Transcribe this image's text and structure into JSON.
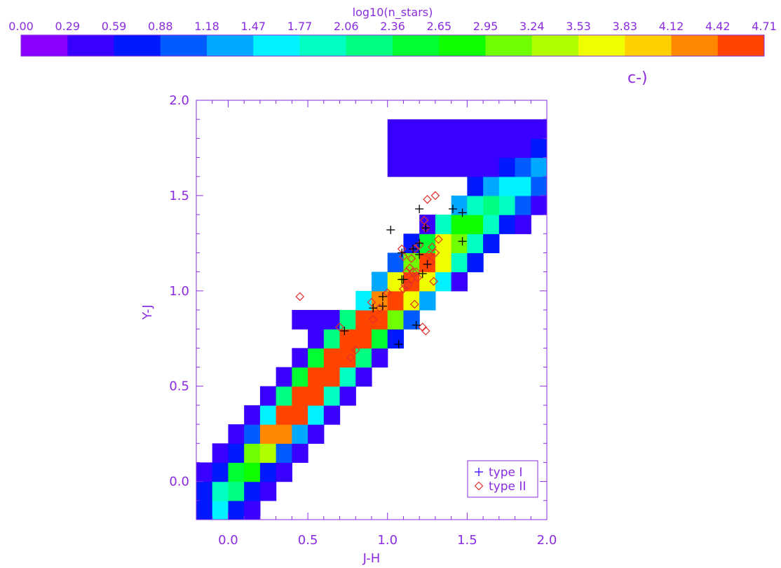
{
  "chart_data": {
    "type": "heatmap",
    "colorbar": {
      "title": "log10(n_stars)",
      "tick_labels": [
        "0.00",
        "0.29",
        "0.59",
        "0.88",
        "1.18",
        "1.47",
        "1.77",
        "2.06",
        "2.36",
        "2.65",
        "2.95",
        "3.24",
        "3.53",
        "3.83",
        "4.12",
        "4.42",
        "4.71"
      ],
      "colors": [
        "#8a00ff",
        "#3a00ff",
        "#0018ff",
        "#005cff",
        "#00a8ff",
        "#00f2ff",
        "#00ffc0",
        "#00ff80",
        "#00ff30",
        "#10ff00",
        "#70ff00",
        "#b0ff00",
        "#f0ff00",
        "#ffd000",
        "#ff8800",
        "#ff4400"
      ],
      "min": 0.0,
      "max": 4.71
    },
    "annotation": "c-)",
    "xlabel": "J-H",
    "ylabel": "Y-J",
    "xlim": [
      -0.2,
      2.0
    ],
    "ylim": [
      -0.2,
      2.0
    ],
    "x_ticks": [
      "0.0",
      "0.5",
      "1.0",
      "1.5",
      "2.0"
    ],
    "y_ticks": [
      "0.0",
      "0.5",
      "1.0",
      "1.5",
      "2.0"
    ],
    "legend": {
      "placement": "bottom-right",
      "entries": [
        {
          "label": "type I",
          "marker": "+",
          "color": "#000000"
        },
        {
          "label": "type II",
          "marker": "diamond",
          "color": "#e0302a"
        }
      ]
    },
    "series": [
      {
        "name": "type I",
        "marker": "plus",
        "points": [
          [
            1.02,
            1.32
          ],
          [
            1.2,
            1.43
          ],
          [
            1.41,
            1.43
          ],
          [
            1.47,
            1.41
          ],
          [
            1.24,
            1.33
          ],
          [
            1.2,
            1.25
          ],
          [
            1.16,
            1.22
          ],
          [
            1.09,
            1.2
          ],
          [
            1.2,
            1.19
          ],
          [
            1.47,
            1.26
          ],
          [
            1.25,
            1.14
          ],
          [
            1.22,
            1.09
          ],
          [
            1.09,
            1.06
          ],
          [
            1.1,
            1.06
          ],
          [
            0.97,
            0.97
          ],
          [
            0.97,
            0.92
          ],
          [
            0.91,
            0.91
          ],
          [
            0.73,
            0.79
          ],
          [
            1.18,
            0.82
          ],
          [
            1.07,
            0.72
          ]
        ]
      },
      {
        "name": "type II",
        "marker": "diamond",
        "points": [
          [
            1.3,
            1.5
          ],
          [
            1.25,
            1.48
          ],
          [
            1.23,
            1.37
          ],
          [
            1.24,
            1.33
          ],
          [
            1.2,
            1.24
          ],
          [
            1.17,
            1.22
          ],
          [
            1.09,
            1.22
          ],
          [
            1.1,
            1.18
          ],
          [
            1.15,
            1.17
          ],
          [
            1.3,
            1.2
          ],
          [
            1.32,
            1.27
          ],
          [
            1.28,
            1.23
          ],
          [
            1.26,
            1.19
          ],
          [
            1.27,
            1.15
          ],
          [
            1.14,
            1.12
          ],
          [
            1.12,
            1.1
          ],
          [
            1.16,
            1.1
          ],
          [
            1.18,
            1.1
          ],
          [
            1.19,
            1.07
          ],
          [
            1.15,
            1.06
          ],
          [
            1.11,
            1.03
          ],
          [
            1.1,
            1.01
          ],
          [
            1.0,
            0.99
          ],
          [
            1.13,
            1.03
          ],
          [
            1.29,
            1.05
          ],
          [
            0.9,
            0.94
          ],
          [
            0.95,
            0.91
          ],
          [
            0.91,
            0.85
          ],
          [
            1.17,
            0.93
          ],
          [
            0.7,
            0.81
          ],
          [
            1.22,
            0.81
          ],
          [
            1.24,
            0.79
          ],
          [
            0.8,
            0.69
          ],
          [
            0.77,
            0.65
          ],
          [
            0.45,
            0.97
          ]
        ]
      }
    ]
  }
}
